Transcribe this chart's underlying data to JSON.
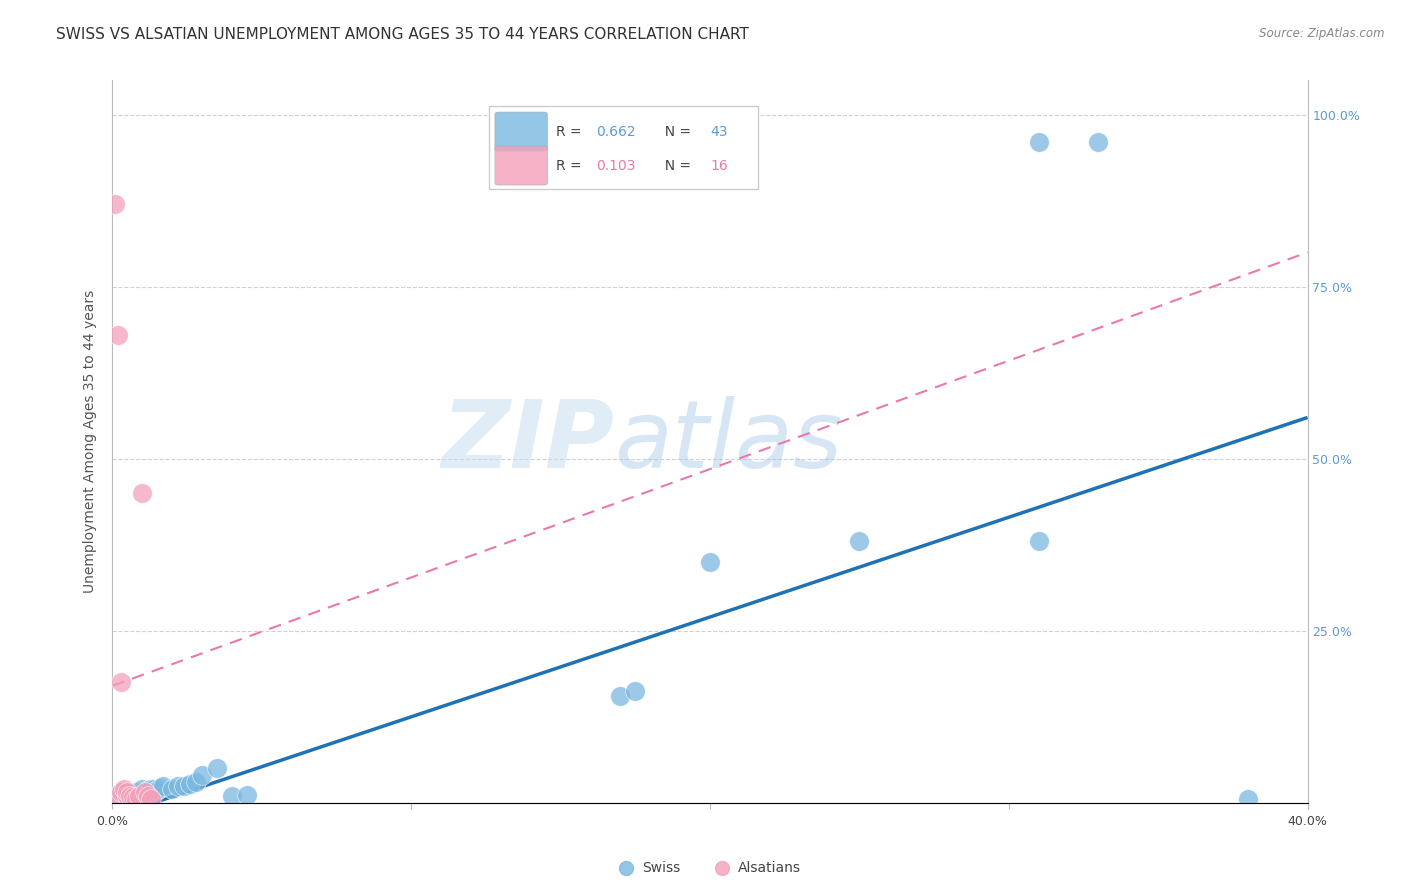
{
  "title": "SWISS VS ALSATIAN UNEMPLOYMENT AMONG AGES 35 TO 44 YEARS CORRELATION CHART",
  "source": "Source: ZipAtlas.com",
  "ylabel": "Unemployment Among Ages 35 to 44 years",
  "xlim": [
    0.0,
    0.4
  ],
  "ylim": [
    0.0,
    1.05
  ],
  "swiss_R": 0.662,
  "swiss_N": 43,
  "alsatian_R": 0.103,
  "alsatian_N": 16,
  "swiss_color": "#7ab8e0",
  "alsatian_color": "#f4a0bb",
  "swiss_line_color": "#2171b5",
  "alsatian_line_color": "#e87aab",
  "alsatian_line_dash": [
    6,
    4
  ],
  "watermark_zip": "ZIP",
  "watermark_atlas": "atlas",
  "swiss_x": [
    0.001,
    0.001,
    0.002,
    0.002,
    0.003,
    0.003,
    0.004,
    0.004,
    0.005,
    0.005,
    0.006,
    0.006,
    0.007,
    0.007,
    0.008,
    0.008,
    0.009,
    0.01,
    0.01,
    0.011,
    0.012,
    0.013,
    0.014,
    0.015,
    0.016,
    0.017,
    0.02,
    0.022,
    0.024,
    0.026,
    0.028,
    0.03,
    0.035,
    0.04,
    0.045,
    0.17,
    0.175,
    0.2,
    0.25,
    0.31,
    0.31,
    0.33,
    0.38
  ],
  "swiss_y": [
    0.005,
    0.01,
    0.005,
    0.012,
    0.004,
    0.012,
    0.008,
    0.015,
    0.003,
    0.01,
    0.006,
    0.014,
    0.004,
    0.01,
    0.008,
    0.016,
    0.012,
    0.015,
    0.02,
    0.012,
    0.018,
    0.02,
    0.02,
    0.018,
    0.022,
    0.025,
    0.02,
    0.025,
    0.025,
    0.028,
    0.03,
    0.04,
    0.05,
    0.01,
    0.012,
    0.155,
    0.162,
    0.35,
    0.38,
    0.38,
    0.96,
    0.96,
    0.005
  ],
  "alsatian_x": [
    0.001,
    0.001,
    0.002,
    0.003,
    0.003,
    0.004,
    0.005,
    0.005,
    0.006,
    0.007,
    0.008,
    0.009,
    0.01,
    0.011,
    0.012,
    0.013
  ],
  "alsatian_y": [
    0.005,
    0.87,
    0.68,
    0.015,
    0.175,
    0.02,
    0.01,
    0.015,
    0.01,
    0.008,
    0.005,
    0.01,
    0.45,
    0.015,
    0.01,
    0.005
  ],
  "background_color": "#ffffff",
  "grid_color": "#cccccc",
  "title_fontsize": 11,
  "axis_fontsize": 10,
  "tick_fontsize": 9
}
